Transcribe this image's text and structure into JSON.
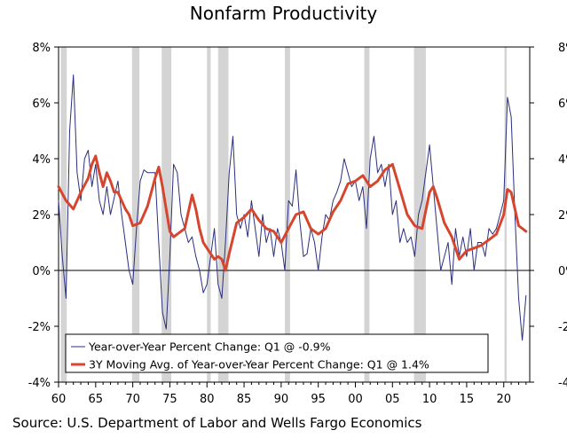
{
  "chart_data": {
    "type": "line",
    "title": "Nonfarm Productivity",
    "source": "Source: U.S. Department of Labor and Wells Fargo Economics",
    "xlim": [
      1960,
      2023.5
    ],
    "ylim": [
      -4,
      8
    ],
    "y_ticks": [
      -4,
      -2,
      0,
      2,
      4,
      6,
      8
    ],
    "y_tick_labels": [
      "-4%",
      "-2%",
      "0%",
      "2%",
      "4%",
      "6%",
      "8%"
    ],
    "x_ticks": [
      1960,
      1965,
      1970,
      1975,
      1980,
      1985,
      1990,
      1995,
      2000,
      2005,
      2010,
      2015,
      2020
    ],
    "x_tick_labels": [
      "60",
      "65",
      "70",
      "75",
      "80",
      "85",
      "90",
      "95",
      "00",
      "05",
      "10",
      "15",
      "20"
    ],
    "recessions": [
      [
        1960.3,
        1961.1
      ],
      [
        1969.9,
        1970.9
      ],
      [
        1973.9,
        1975.2
      ],
      [
        1980.0,
        1980.5
      ],
      [
        1981.5,
        1982.9
      ],
      [
        1990.5,
        1991.2
      ],
      [
        2001.2,
        2001.9
      ],
      [
        2007.9,
        2009.5
      ],
      [
        2020.1,
        2020.4
      ]
    ],
    "series": [
      {
        "name": "Year-over-Year Percent Change: Q1 @ -0.9%",
        "color": "#2b2f7e",
        "width": 1,
        "x": [
          1960.0,
          1960.5,
          1961.0,
          1961.5,
          1962.0,
          1962.5,
          1963.0,
          1963.5,
          1964.0,
          1964.5,
          1965.0,
          1965.5,
          1966.0,
          1966.5,
          1967.0,
          1967.5,
          1968.0,
          1968.5,
          1969.0,
          1969.5,
          1970.0,
          1970.5,
          1971.0,
          1971.5,
          1972.0,
          1972.5,
          1973.0,
          1973.5,
          1974.0,
          1974.5,
          1975.0,
          1975.5,
          1976.0,
          1976.5,
          1977.0,
          1977.5,
          1978.0,
          1978.5,
          1979.0,
          1979.5,
          1980.0,
          1980.5,
          1981.0,
          1981.5,
          1982.0,
          1982.5,
          1983.0,
          1983.5,
          1984.0,
          1984.5,
          1985.0,
          1985.5,
          1986.0,
          1986.5,
          1987.0,
          1987.5,
          1988.0,
          1988.5,
          1989.0,
          1989.5,
          1990.0,
          1990.5,
          1991.0,
          1991.5,
          1992.0,
          1992.5,
          1993.0,
          1993.5,
          1994.0,
          1994.5,
          1995.0,
          1995.5,
          1996.0,
          1996.5,
          1997.0,
          1997.5,
          1998.0,
          1998.5,
          1999.0,
          1999.5,
          2000.0,
          2000.5,
          2001.0,
          2001.5,
          2002.0,
          2002.5,
          2003.0,
          2003.5,
          2004.0,
          2004.5,
          2005.0,
          2005.5,
          2006.0,
          2006.5,
          2007.0,
          2007.5,
          2008.0,
          2008.5,
          2009.0,
          2009.5,
          2010.0,
          2010.5,
          2011.0,
          2011.5,
          2012.0,
          2012.5,
          2013.0,
          2013.5,
          2014.0,
          2014.5,
          2015.0,
          2015.5,
          2016.0,
          2016.5,
          2017.0,
          2017.5,
          2018.0,
          2018.5,
          2019.0,
          2019.5,
          2020.0,
          2020.5,
          2021.0,
          2021.5,
          2022.0,
          2022.5,
          2023.0
        ],
        "values": [
          2.5,
          0.5,
          -1.0,
          5.0,
          7.0,
          3.5,
          2.5,
          4.0,
          4.3,
          3.0,
          3.8,
          2.5,
          2.0,
          3.0,
          2.0,
          2.6,
          3.2,
          2.0,
          1.0,
          0.0,
          -0.5,
          1.5,
          3.2,
          3.6,
          3.5,
          3.5,
          3.5,
          1.0,
          -1.5,
          -2.1,
          0.5,
          3.8,
          3.5,
          2.0,
          1.5,
          1.0,
          1.2,
          0.5,
          0.0,
          -0.8,
          -0.5,
          0.5,
          1.5,
          -0.5,
          -1.0,
          1.0,
          3.5,
          4.8,
          2.0,
          1.5,
          2.0,
          1.2,
          2.5,
          1.5,
          0.5,
          2.0,
          1.0,
          1.5,
          0.5,
          1.5,
          1.0,
          0.0,
          2.5,
          2.3,
          3.6,
          1.8,
          0.5,
          0.6,
          1.5,
          1.0,
          0.0,
          1.2,
          2.0,
          1.8,
          2.5,
          2.8,
          3.2,
          4.0,
          3.5,
          3.0,
          3.2,
          2.5,
          3.0,
          1.5,
          4.0,
          4.8,
          3.5,
          3.8,
          3.0,
          3.8,
          2.0,
          2.5,
          1.0,
          1.5,
          1.0,
          1.2,
          0.5,
          2.0,
          2.5,
          3.5,
          4.5,
          3.0,
          1.5,
          0.0,
          0.5,
          1.0,
          -0.5,
          1.5,
          0.5,
          1.2,
          0.5,
          1.5,
          0.0,
          1.0,
          1.0,
          0.5,
          1.5,
          1.3,
          1.5,
          2.0,
          2.5,
          6.2,
          5.5,
          2.0,
          -1.0,
          -2.5,
          -0.9
        ],
        "values_comment": "1995-2023 portion is an approximate reading of the plotted line"
      },
      {
        "name": "3Y Moving Avg. of Year-over-Year Percent Change: Q1 @ 1.4%",
        "color": "#d6462e",
        "width": 3,
        "x": [
          1960.0,
          1961.0,
          1962.0,
          1963.0,
          1964.0,
          1964.5,
          1965.0,
          1965.5,
          1966.0,
          1966.5,
          1967.0,
          1967.5,
          1968.0,
          1968.5,
          1969.0,
          1969.5,
          1970.0,
          1971.0,
          1972.0,
          1973.0,
          1973.5,
          1974.0,
          1975.0,
          1975.5,
          1976.0,
          1977.0,
          1978.0,
          1978.5,
          1979.0,
          1979.5,
          1980.0,
          1981.0,
          1981.5,
          1982.0,
          1982.5,
          1983.0,
          1984.0,
          1985.0,
          1986.0,
          1987.0,
          1988.0,
          1989.0,
          1990.0,
          1991.0,
          1992.0,
          1993.0,
          1994.0,
          1995.0,
          1996.0,
          1997.0,
          1998.0,
          1999.0,
          2000.0,
          2001.0,
          2002.0,
          2003.0,
          2004.0,
          2005.0,
          2006.0,
          2007.0,
          2008.0,
          2009.0,
          2010.0,
          2010.5,
          2011.0,
          2012.0,
          2013.0,
          2014.0,
          2015.0,
          2016.0,
          2017.0,
          2018.0,
          2019.0,
          2020.0,
          2020.5,
          2021.0,
          2022.0,
          2023.0
        ],
        "values": [
          3.0,
          2.5,
          2.2,
          2.8,
          3.3,
          3.8,
          4.1,
          3.5,
          3.0,
          3.5,
          3.2,
          2.8,
          2.8,
          2.5,
          2.2,
          2.0,
          1.6,
          1.7,
          2.3,
          3.3,
          3.7,
          3.0,
          1.4,
          1.2,
          1.3,
          1.5,
          2.7,
          2.2,
          1.5,
          1.0,
          0.8,
          0.4,
          0.5,
          0.4,
          0.0,
          0.6,
          1.7,
          1.9,
          2.2,
          1.8,
          1.5,
          1.4,
          1.0,
          1.5,
          2.0,
          2.1,
          1.5,
          1.3,
          1.5,
          2.1,
          2.5,
          3.1,
          3.2,
          3.4,
          3.0,
          3.2,
          3.6,
          3.8,
          2.9,
          2.0,
          1.6,
          1.5,
          2.8,
          3.0,
          2.6,
          1.7,
          1.2,
          0.4,
          0.7,
          0.8,
          0.9,
          1.1,
          1.3,
          2.0,
          2.9,
          2.8,
          1.6,
          1.4
        ],
        "values_comment": "1995-2023 portion is an approximate reading of the plotted line"
      }
    ]
  }
}
